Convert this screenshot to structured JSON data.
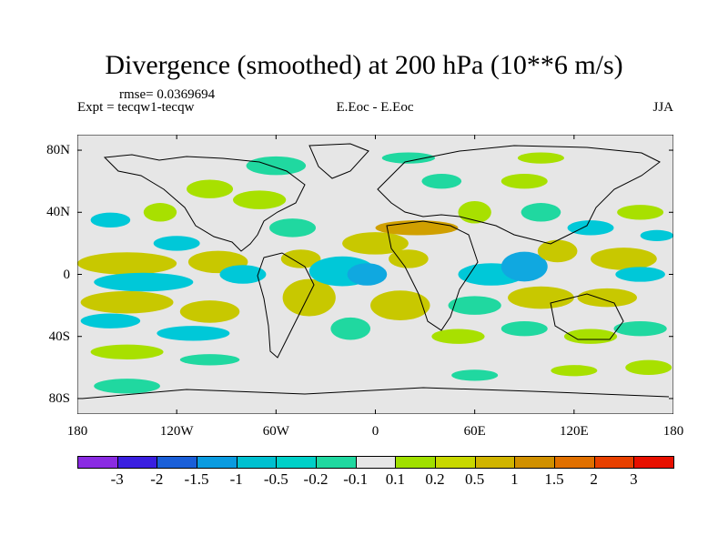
{
  "title": "Divergence (smoothed) at 200 hPa (10**6 m/s)",
  "rmse": "rmse= 0.0369694",
  "expt": "Expt = tecqw1-tecqw",
  "center_label": "E.Eoc - E.Eoc",
  "season": "JJA",
  "map": {
    "lon_range": [
      -180,
      180
    ],
    "lat_range": [
      -90,
      90
    ],
    "background": "#e6e6e6",
    "x_ticks": [
      {
        "value": -180,
        "label": "180"
      },
      {
        "value": -120,
        "label": "120W"
      },
      {
        "value": -60,
        "label": "60W"
      },
      {
        "value": 0,
        "label": "0"
      },
      {
        "value": 60,
        "label": "60E"
      },
      {
        "value": 120,
        "label": "120E"
      },
      {
        "value": 180,
        "label": "180"
      }
    ],
    "y_ticks": [
      {
        "value": 80,
        "label": "80N"
      },
      {
        "value": 40,
        "label": "40N"
      },
      {
        "value": 0,
        "label": "0"
      },
      {
        "value": -40,
        "label": "40S"
      },
      {
        "value": -80,
        "label": "80S"
      }
    ]
  },
  "colorbar": {
    "colors": [
      "#8a2be2",
      "#3a1fe0",
      "#1a5fd8",
      "#0a9be0",
      "#00c0d0",
      "#00d0c8",
      "#20d8a0",
      "#e6e6e6",
      "#a0e000",
      "#c8d800",
      "#d0b400",
      "#d09000",
      "#e07000",
      "#e84000",
      "#e81000"
    ],
    "labels": [
      "-3",
      "-2",
      "-1.5",
      "-1",
      "-0.5",
      "-0.2",
      "-0.1",
      "0.1",
      "0.2",
      "0.5",
      "1",
      "1.5",
      "2",
      "3"
    ]
  },
  "field": {
    "colors": {
      "pos1": "#a8e000",
      "pos2": "#c8c800",
      "pos3": "#d0a000",
      "neg1": "#20d8a0",
      "neg2": "#00c8d8",
      "neg3": "#10a8e0"
    },
    "blobs": [
      {
        "lon": -150,
        "lat": 7,
        "rx": 30,
        "ry": 6,
        "c": "pos2"
      },
      {
        "lon": -95,
        "lat": 8,
        "rx": 18,
        "ry": 6,
        "c": "pos2"
      },
      {
        "lon": -140,
        "lat": -5,
        "rx": 30,
        "ry": 5,
        "c": "neg2"
      },
      {
        "lon": -80,
        "lat": 0,
        "rx": 14,
        "ry": 5,
        "c": "neg2"
      },
      {
        "lon": -150,
        "lat": -18,
        "rx": 28,
        "ry": 6,
        "c": "pos2"
      },
      {
        "lon": -100,
        "lat": -24,
        "rx": 18,
        "ry": 6,
        "c": "pos2"
      },
      {
        "lon": -160,
        "lat": -30,
        "rx": 18,
        "ry": 4,
        "c": "neg2"
      },
      {
        "lon": -110,
        "lat": -38,
        "rx": 22,
        "ry": 4,
        "c": "neg2"
      },
      {
        "lon": -150,
        "lat": -50,
        "rx": 22,
        "ry": 4,
        "c": "pos1"
      },
      {
        "lon": -100,
        "lat": -55,
        "rx": 18,
        "ry": 3,
        "c": "neg1"
      },
      {
        "lon": -150,
        "lat": -72,
        "rx": 20,
        "ry": 4,
        "c": "neg1"
      },
      {
        "lon": -160,
        "lat": 35,
        "rx": 12,
        "ry": 4,
        "c": "neg2"
      },
      {
        "lon": -130,
        "lat": 40,
        "rx": 10,
        "ry": 5,
        "c": "pos1"
      },
      {
        "lon": -100,
        "lat": 55,
        "rx": 14,
        "ry": 5,
        "c": "pos1"
      },
      {
        "lon": -60,
        "lat": 70,
        "rx": 18,
        "ry": 5,
        "c": "neg1"
      },
      {
        "lon": -70,
        "lat": 48,
        "rx": 16,
        "ry": 5,
        "c": "pos1"
      },
      {
        "lon": -50,
        "lat": 30,
        "rx": 14,
        "ry": 5,
        "c": "neg1"
      },
      {
        "lon": -45,
        "lat": 10,
        "rx": 12,
        "ry": 5,
        "c": "pos2"
      },
      {
        "lon": -40,
        "lat": -15,
        "rx": 16,
        "ry": 10,
        "c": "pos2"
      },
      {
        "lon": -20,
        "lat": 2,
        "rx": 20,
        "ry": 8,
        "c": "neg2"
      },
      {
        "lon": -5,
        "lat": 0,
        "rx": 12,
        "ry": 6,
        "c": "neg3"
      },
      {
        "lon": 0,
        "lat": 20,
        "rx": 20,
        "ry": 6,
        "c": "pos2"
      },
      {
        "lon": 20,
        "lat": 10,
        "rx": 12,
        "ry": 5,
        "c": "pos2"
      },
      {
        "lon": 15,
        "lat": -20,
        "rx": 18,
        "ry": 8,
        "c": "pos2"
      },
      {
        "lon": -15,
        "lat": -35,
        "rx": 12,
        "ry": 6,
        "c": "neg1"
      },
      {
        "lon": 25,
        "lat": 30,
        "rx": 25,
        "ry": 4,
        "c": "pos3"
      },
      {
        "lon": 40,
        "lat": 60,
        "rx": 12,
        "ry": 4,
        "c": "neg1"
      },
      {
        "lon": 60,
        "lat": 40,
        "rx": 10,
        "ry": 6,
        "c": "pos1"
      },
      {
        "lon": 70,
        "lat": 0,
        "rx": 20,
        "ry": 6,
        "c": "neg2"
      },
      {
        "lon": 90,
        "lat": 5,
        "rx": 14,
        "ry": 8,
        "c": "neg3"
      },
      {
        "lon": 110,
        "lat": 15,
        "rx": 12,
        "ry": 6,
        "c": "pos2"
      },
      {
        "lon": 90,
        "lat": 60,
        "rx": 14,
        "ry": 4,
        "c": "pos1"
      },
      {
        "lon": 100,
        "lat": 40,
        "rx": 12,
        "ry": 5,
        "c": "neg1"
      },
      {
        "lon": 130,
        "lat": 30,
        "rx": 14,
        "ry": 4,
        "c": "neg2"
      },
      {
        "lon": 150,
        "lat": 10,
        "rx": 20,
        "ry": 6,
        "c": "pos2"
      },
      {
        "lon": 160,
        "lat": 0,
        "rx": 15,
        "ry": 4,
        "c": "neg2"
      },
      {
        "lon": 100,
        "lat": -15,
        "rx": 20,
        "ry": 6,
        "c": "pos2"
      },
      {
        "lon": 140,
        "lat": -15,
        "rx": 18,
        "ry": 5,
        "c": "pos2"
      },
      {
        "lon": 60,
        "lat": -20,
        "rx": 16,
        "ry": 5,
        "c": "neg1"
      },
      {
        "lon": 50,
        "lat": -40,
        "rx": 16,
        "ry": 4,
        "c": "pos1"
      },
      {
        "lon": 90,
        "lat": -35,
        "rx": 14,
        "ry": 4,
        "c": "neg1"
      },
      {
        "lon": 130,
        "lat": -40,
        "rx": 16,
        "ry": 4,
        "c": "pos1"
      },
      {
        "lon": 160,
        "lat": -35,
        "rx": 16,
        "ry": 4,
        "c": "neg1"
      },
      {
        "lon": 165,
        "lat": -60,
        "rx": 14,
        "ry": 4,
        "c": "pos1"
      },
      {
        "lon": 60,
        "lat": -65,
        "rx": 14,
        "ry": 3,
        "c": "neg1"
      },
      {
        "lon": 120,
        "lat": -62,
        "rx": 14,
        "ry": 3,
        "c": "pos1"
      },
      {
        "lon": 160,
        "lat": 40,
        "rx": 14,
        "ry": 4,
        "c": "pos1"
      },
      {
        "lon": 170,
        "lat": 25,
        "rx": 10,
        "ry": 3,
        "c": "neg2"
      },
      {
        "lon": -120,
        "lat": 20,
        "rx": 14,
        "ry": 4,
        "c": "neg2"
      },
      {
        "lon": 20,
        "lat": 75,
        "rx": 16,
        "ry": 3,
        "c": "neg1"
      },
      {
        "lon": 100,
        "lat": 75,
        "rx": 14,
        "ry": 3,
        "c": "pos1"
      }
    ]
  }
}
